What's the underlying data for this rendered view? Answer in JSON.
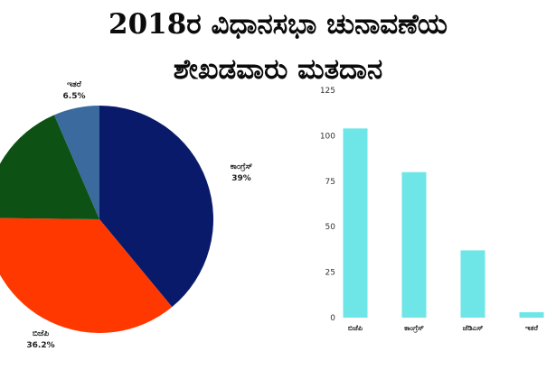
{
  "title": {
    "line1": "2018ರ ವಿಧಾನಸಭಾ ಚುನಾವಣೆಯ",
    "line2": "ಶೇಖಡವಾರು ಮತದಾನ"
  },
  "chart_data": [
    {
      "type": "pie",
      "slices": [
        {
          "label": "ಕಾಂಗ್ರೆಸ್",
          "value": 39,
          "display": "39%",
          "color": "#0a1a6b"
        },
        {
          "label": "ಬಿಜೆಪಿ",
          "value": 36.2,
          "display": "36.2%",
          "color": "#ff3800"
        },
        {
          "label": "",
          "value": 18.3,
          "display": "",
          "color": "#0d5214"
        },
        {
          "label": "ಇತರೆ",
          "value": 6.5,
          "display": "6.5%",
          "color": "#3a6a9e"
        }
      ],
      "start_angle_deg": 0,
      "direction": "clockwise"
    },
    {
      "type": "bar",
      "categories": [
        "ಬಿಜೆಪಿ",
        "ಕಾಂಗ್ರೆಸ್",
        "ಜೆಡಿಎಸ್",
        "ಇತರೆ"
      ],
      "values": [
        104,
        80,
        37,
        3
      ],
      "ylim": [
        0,
        125
      ],
      "yticks": [
        0,
        25,
        50,
        75,
        100,
        125
      ],
      "bar_color": "#6ee6e8",
      "grid": false
    }
  ]
}
